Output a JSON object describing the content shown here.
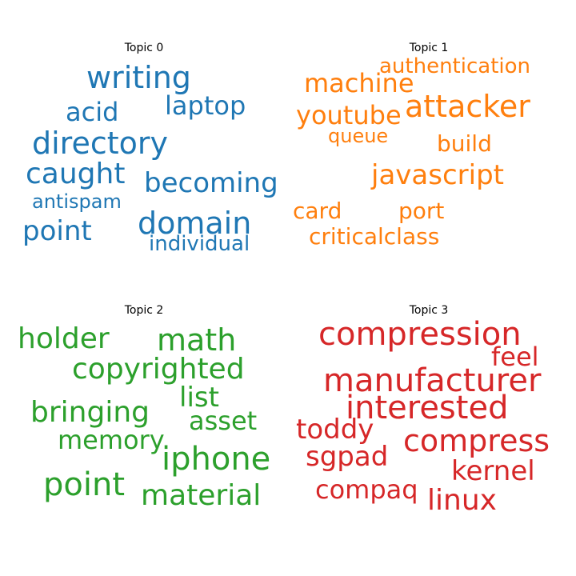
{
  "chart_data": {
    "type": "wordcloud",
    "panels": [
      {
        "title": "Topic 0",
        "color": "#1f77b4",
        "words": [
          "writing",
          "laptop",
          "acid",
          "directory",
          "caught",
          "becoming",
          "antispam",
          "domain",
          "point",
          "individual"
        ]
      },
      {
        "title": "Topic 1",
        "color": "#ff7f0e",
        "words": [
          "authentication",
          "machine",
          "attacker",
          "youtube",
          "queue",
          "build",
          "javascript",
          "card",
          "port",
          "criticalclass"
        ]
      },
      {
        "title": "Topic 2",
        "color": "#2ca02c",
        "words": [
          "holder",
          "math",
          "copyrighted",
          "list",
          "bringing",
          "asset",
          "memory",
          "iphone",
          "point",
          "material"
        ]
      },
      {
        "title": "Topic 3",
        "color": "#d62728",
        "words": [
          "compression",
          "feel",
          "manufacturer",
          "interested",
          "toddy",
          "compress",
          "sgpad",
          "kernel",
          "compaq",
          "linux"
        ]
      }
    ]
  }
}
